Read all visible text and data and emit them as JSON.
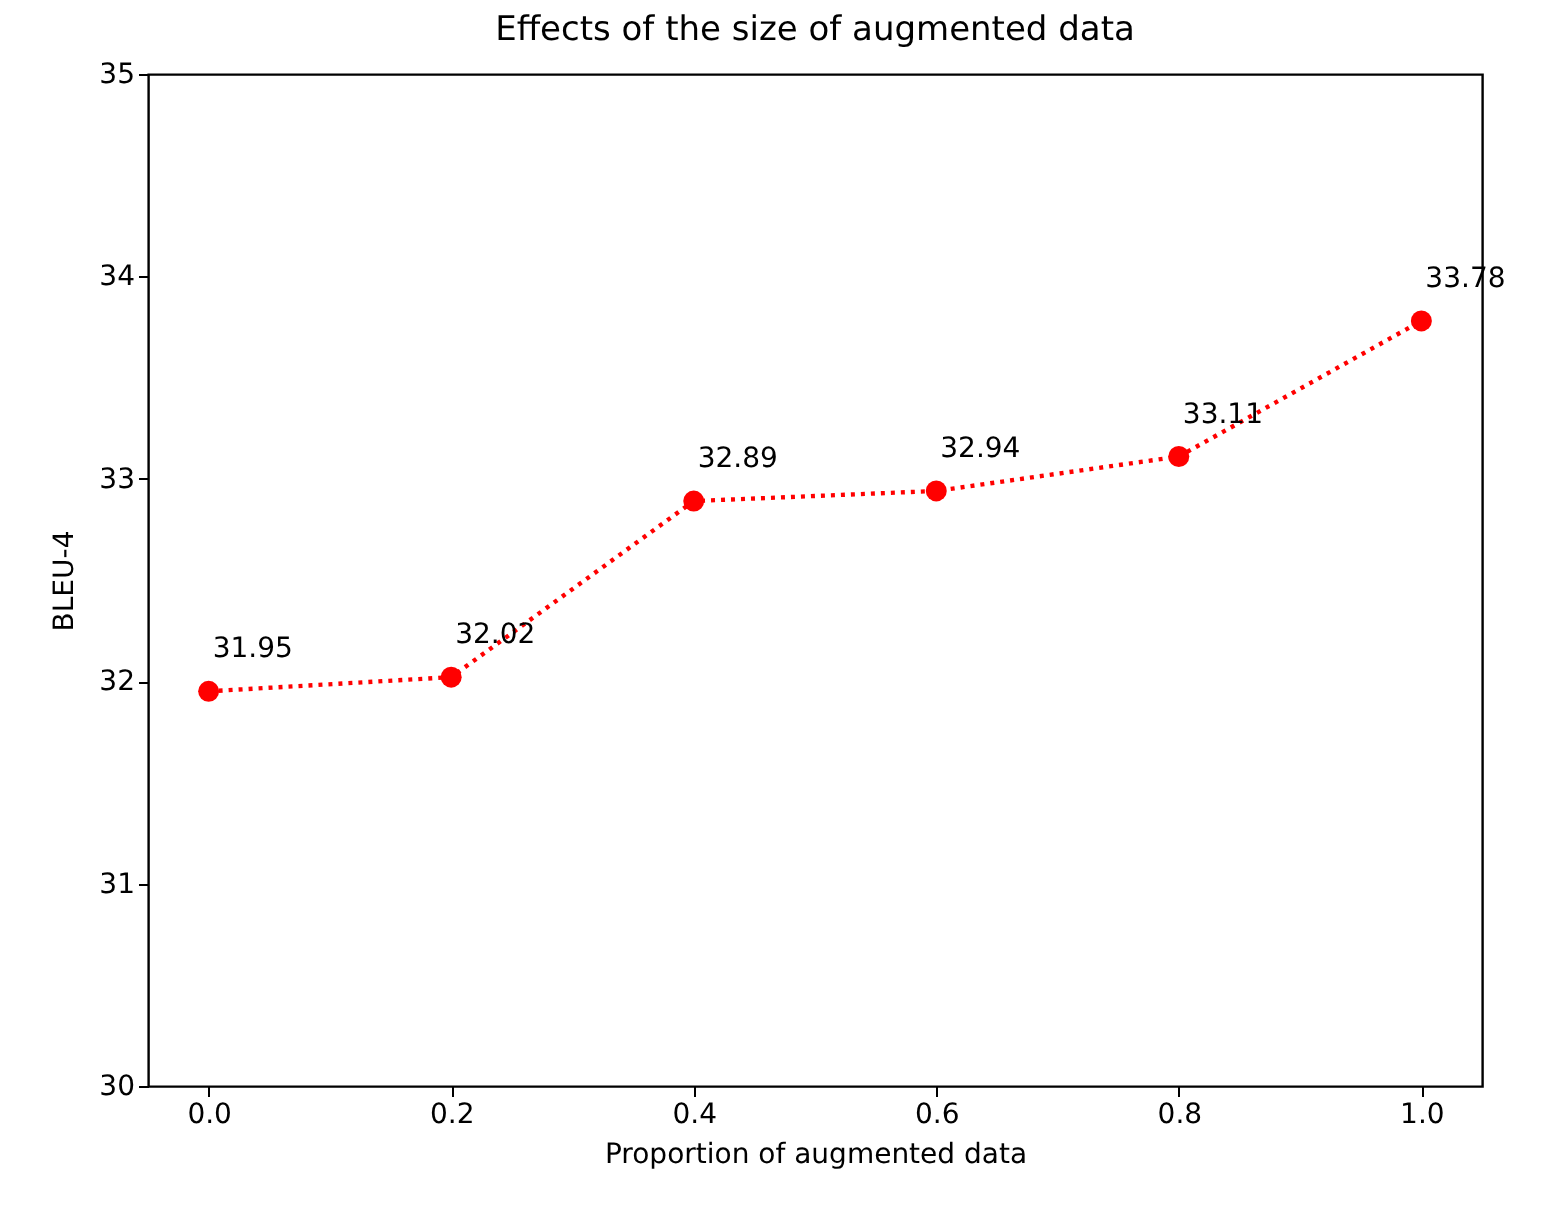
{
  "chart_data": {
    "type": "line",
    "title": "Effects of the size of augmented data",
    "xlabel": "Proportion of augmented data",
    "ylabel": "BLEU-4",
    "x": [
      0.0,
      0.2,
      0.4,
      0.6,
      0.8,
      1.0
    ],
    "series": [
      {
        "color": "#ff0000",
        "values": [
          31.95,
          32.02,
          32.89,
          32.94,
          33.11,
          33.78
        ]
      }
    ],
    "xlim": [
      -0.05,
      1.05
    ],
    "ylim": [
      30,
      35
    ],
    "xticks": [
      {
        "value": 0.0,
        "label": "0.0"
      },
      {
        "value": 0.2,
        "label": "0.2"
      },
      {
        "value": 0.4,
        "label": "0.4"
      },
      {
        "value": 0.6,
        "label": "0.6"
      },
      {
        "value": 0.8,
        "label": "0.8"
      },
      {
        "value": 1.0,
        "label": "1.0"
      }
    ],
    "yticks": [
      30,
      31,
      32,
      33,
      34,
      35
    ],
    "data_labels": true,
    "grid": false,
    "marker": "circle",
    "line_style": "dotted"
  }
}
